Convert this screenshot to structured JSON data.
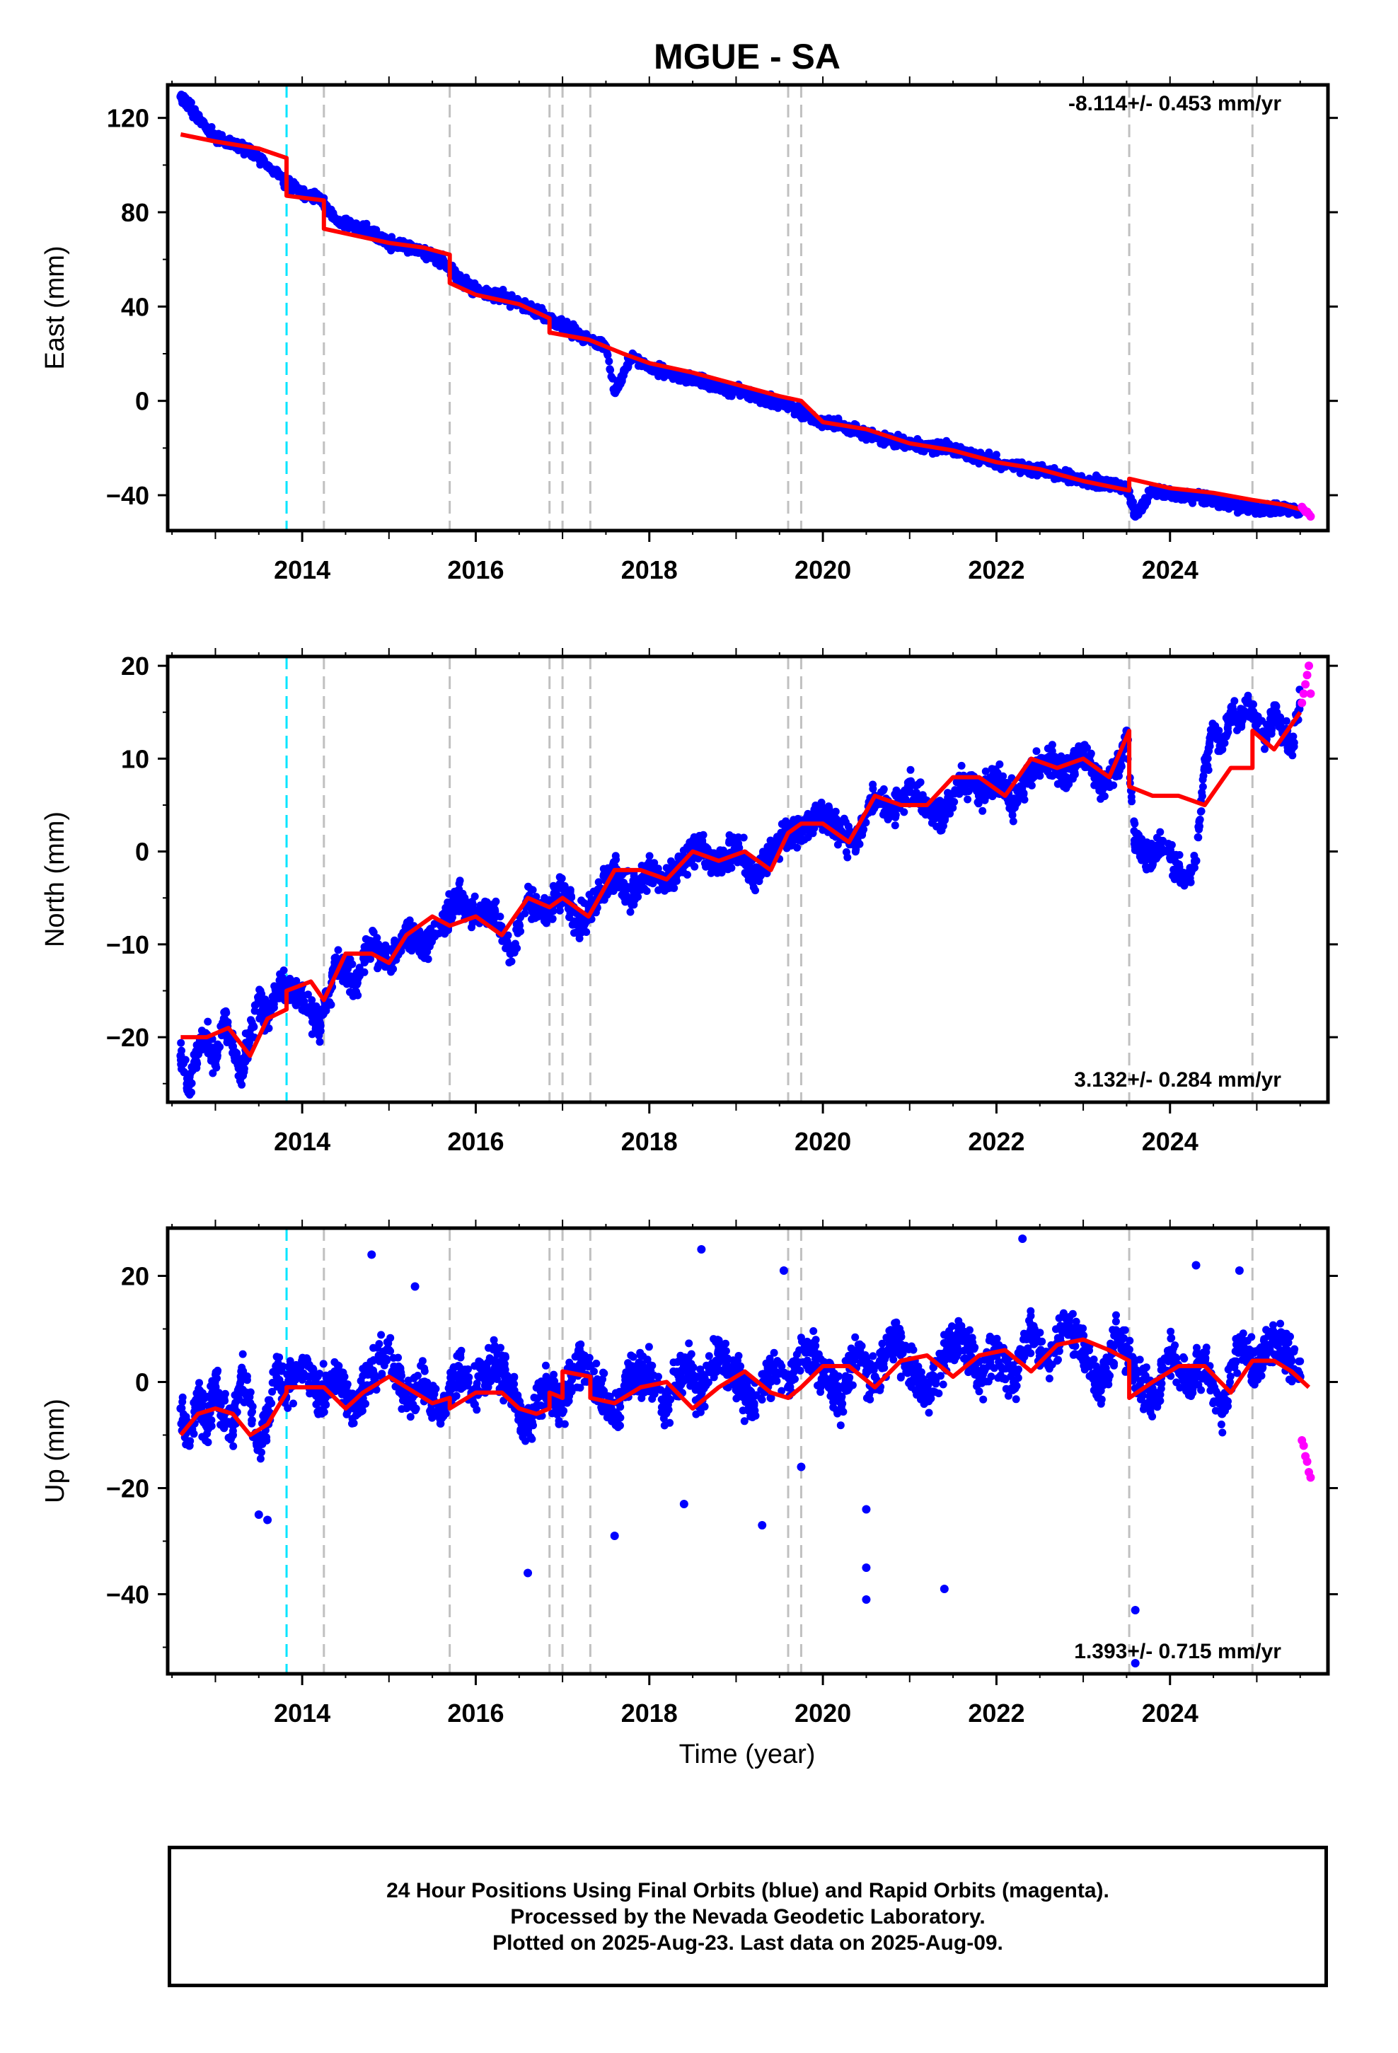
{
  "title": "MGUE - SA",
  "xlabel": "Time (year)",
  "x_ticks": [
    "2014",
    "2016",
    "2018",
    "2020",
    "2022",
    "2024"
  ],
  "colors": {
    "final_orbits": "#0000ff",
    "rapid_orbits": "#ff00ff",
    "model": "#ff0000",
    "event_line": "#c0c0c0",
    "equipment_line": "#00e5ff"
  },
  "caption": [
    "24 Hour Positions Using Final Orbits (blue) and Rapid Orbits (magenta).",
    "Processed by the Nevada Geodetic Laboratory.",
    "Plotted on 2025-Aug-23. Last data on 2025-Aug-09."
  ],
  "chart_data": [
    {
      "type": "scatter",
      "ylabel": "East (mm)",
      "rate": "-8.114+/- 0.453 mm/yr",
      "rate_position": "top-right",
      "xlim": [
        2012.45,
        2025.82
      ],
      "ylim": [
        -55,
        134
      ],
      "y_ticks": [
        120,
        80,
        40,
        0,
        -40
      ],
      "event_lines": [
        2013.82,
        2014.25,
        2015.7,
        2016.85,
        2017.0,
        2017.32,
        2019.6,
        2019.75,
        2023.53,
        2024.95
      ],
      "equipment_change": 2013.82,
      "series": [
        {
          "name": "model",
          "kind": "line",
          "x": [
            2012.6,
            2013.0,
            2013.5,
            2013.82,
            2013.82,
            2014.25,
            2014.25,
            2015.0,
            2015.4,
            2015.7,
            2015.7,
            2016.0,
            2016.5,
            2016.85,
            2016.85,
            2017.3,
            2017.7,
            2018.0,
            2018.5,
            2019.0,
            2019.5,
            2019.75,
            2020.0,
            2020.5,
            2021.0,
            2021.5,
            2022.0,
            2022.5,
            2023.0,
            2023.53,
            2023.53,
            2024.0,
            2024.5,
            2024.95,
            2025.3,
            2025.6
          ],
          "y": [
            113,
            110,
            107,
            103,
            87,
            85,
            73,
            67,
            65,
            62,
            50,
            45,
            41,
            35,
            29,
            26,
            20,
            16,
            12,
            7,
            2,
            0,
            -9,
            -12,
            -18,
            -21,
            -26,
            -29,
            -34,
            -38,
            -33,
            -37,
            -39,
            -42,
            -44,
            -47
          ]
        },
        {
          "name": "final",
          "kind": "points",
          "x": [
            2012.6,
            2012.65,
            2012.7,
            2012.8,
            2012.9,
            2013.0,
            2013.2,
            2013.4,
            2013.6,
            2013.8,
            2014.0,
            2014.2,
            2014.4,
            2014.7,
            2015.0,
            2015.3,
            2015.6,
            2015.8,
            2016.0,
            2016.3,
            2016.6,
            2016.9,
            2017.2,
            2017.5,
            2017.6,
            2017.8,
            2018.0,
            2018.3,
            2018.6,
            2019.0,
            2019.3,
            2019.6,
            2019.9,
            2020.2,
            2020.5,
            2020.8,
            2021.1,
            2021.4,
            2021.7,
            2022.0,
            2022.3,
            2022.6,
            2022.9,
            2023.2,
            2023.5,
            2023.6,
            2023.8,
            2024.1,
            2024.4,
            2024.7,
            2025.0,
            2025.3,
            2025.5
          ],
          "y": [
            129,
            128,
            125,
            120,
            115,
            112,
            109,
            106,
            100,
            93,
            88,
            86,
            76,
            73,
            67,
            64,
            60,
            52,
            47,
            44,
            40,
            34,
            28,
            23,
            4,
            19,
            14,
            11,
            8,
            4,
            1,
            -2,
            -8,
            -10,
            -14,
            -17,
            -19,
            -20,
            -23,
            -26,
            -28,
            -30,
            -33,
            -35,
            -36,
            -49,
            -38,
            -40,
            -41,
            -44,
            -46,
            -46,
            -47
          ]
        },
        {
          "name": "rapid",
          "kind": "points",
          "x": [
            2025.52,
            2025.54,
            2025.56,
            2025.58,
            2025.6,
            2025.62
          ],
          "y": [
            -45,
            -46,
            -47,
            -47,
            -48,
            -49
          ]
        }
      ]
    },
    {
      "type": "scatter",
      "ylabel": "North (mm)",
      "rate": "3.132+/- 0.284 mm/yr",
      "rate_position": "bottom-right",
      "xlim": [
        2012.45,
        2025.82
      ],
      "ylim": [
        -27,
        21
      ],
      "y_ticks": [
        20,
        10,
        0,
        -10,
        -20
      ],
      "event_lines": [
        2013.82,
        2014.25,
        2015.7,
        2016.85,
        2017.0,
        2017.32,
        2019.6,
        2019.75,
        2023.53,
        2024.95
      ],
      "equipment_change": 2013.82,
      "series": [
        {
          "name": "model",
          "kind": "line",
          "x": [
            2012.6,
            2012.9,
            2013.15,
            2013.4,
            2013.6,
            2013.82,
            2013.82,
            2014.1,
            2014.25,
            2014.5,
            2014.8,
            2015.0,
            2015.2,
            2015.5,
            2015.7,
            2016.0,
            2016.3,
            2016.6,
            2016.85,
            2017.0,
            2017.3,
            2017.6,
            2017.9,
            2018.2,
            2018.5,
            2018.8,
            2019.1,
            2019.4,
            2019.6,
            2019.75,
            2020.0,
            2020.3,
            2020.6,
            2020.9,
            2021.2,
            2021.5,
            2021.8,
            2022.1,
            2022.4,
            2022.7,
            2023.0,
            2023.3,
            2023.53,
            2023.53,
            2023.8,
            2024.1,
            2024.4,
            2024.7,
            2024.95,
            2024.95,
            2025.2,
            2025.5
          ],
          "y": [
            -20,
            -20,
            -19,
            -22,
            -18,
            -17,
            -15,
            -14,
            -16,
            -11,
            -11,
            -12,
            -9,
            -7,
            -8,
            -7,
            -9,
            -5,
            -6,
            -5,
            -7,
            -2,
            -2,
            -3,
            0,
            -1,
            0,
            -2,
            2,
            3,
            3,
            1,
            6,
            5,
            5,
            8,
            8,
            6,
            10,
            9,
            10,
            8,
            13,
            7,
            6,
            6,
            5,
            9,
            9,
            13,
            11,
            15
          ]
        },
        {
          "name": "final",
          "kind": "points",
          "x": [
            2012.6,
            2012.7,
            2012.8,
            2012.9,
            2013.0,
            2013.1,
            2013.2,
            2013.3,
            2013.4,
            2013.5,
            2013.6,
            2013.7,
            2013.8,
            2014.0,
            2014.2,
            2014.4,
            2014.6,
            2014.8,
            2015.0,
            2015.2,
            2015.4,
            2015.6,
            2015.8,
            2016.0,
            2016.2,
            2016.4,
            2016.6,
            2016.8,
            2017.0,
            2017.2,
            2017.4,
            2017.6,
            2017.8,
            2018.0,
            2018.2,
            2018.4,
            2018.6,
            2018.8,
            2019.0,
            2019.2,
            2019.4,
            2019.6,
            2019.8,
            2020.0,
            2020.2,
            2020.4,
            2020.6,
            2020.8,
            2021.0,
            2021.2,
            2021.4,
            2021.6,
            2021.8,
            2022.0,
            2022.2,
            2022.4,
            2022.6,
            2022.8,
            2023.0,
            2023.2,
            2023.4,
            2023.5,
            2023.6,
            2023.7,
            2023.8,
            2023.9,
            2024.0,
            2024.1,
            2024.2,
            2024.3,
            2024.4,
            2024.5,
            2024.6,
            2024.7,
            2024.8,
            2024.9,
            2025.0,
            2025.1,
            2025.2,
            2025.3,
            2025.4,
            2025.5
          ],
          "y": [
            -22,
            -25,
            -21,
            -20,
            -23,
            -18,
            -21,
            -24,
            -20,
            -16,
            -18,
            -15,
            -14,
            -16,
            -19,
            -12,
            -14,
            -10,
            -12,
            -9,
            -10,
            -8,
            -5,
            -7,
            -6,
            -11,
            -5,
            -7,
            -4,
            -8,
            -5,
            -2,
            -5,
            -2,
            -3,
            -1,
            1,
            -2,
            1,
            -3,
            0,
            2,
            3,
            4,
            2,
            1,
            6,
            4,
            7,
            5,
            4,
            8,
            6,
            8,
            5,
            9,
            10,
            8,
            11,
            7,
            9,
            13,
            1,
            0,
            -1,
            1,
            0,
            -2,
            -3,
            -1,
            9,
            13,
            11,
            15,
            14,
            16,
            14,
            12,
            15,
            13,
            11,
            16
          ]
        },
        {
          "name": "rapid",
          "kind": "points",
          "x": [
            2025.52,
            2025.54,
            2025.56,
            2025.58,
            2025.6,
            2025.62
          ],
          "y": [
            16,
            17,
            18,
            19,
            20,
            17
          ]
        }
      ]
    },
    {
      "type": "scatter",
      "ylabel": "Up (mm)",
      "rate": "1.393+/- 0.715 mm/yr",
      "rate_position": "bottom-right",
      "xlim": [
        2012.45,
        2025.82
      ],
      "ylim": [
        -55,
        29
      ],
      "y_ticks": [
        20,
        0,
        -20,
        -40
      ],
      "event_lines": [
        2013.82,
        2014.25,
        2015.7,
        2016.85,
        2017.0,
        2017.32,
        2019.6,
        2019.75,
        2023.53,
        2024.95
      ],
      "equipment_change": 2013.82,
      "series": [
        {
          "name": "model",
          "kind": "line",
          "x": [
            2012.6,
            2012.8,
            2013.0,
            2013.2,
            2013.4,
            2013.6,
            2013.82,
            2013.82,
            2014.0,
            2014.25,
            2014.5,
            2014.7,
            2015.0,
            2015.3,
            2015.5,
            2015.7,
            2015.7,
            2016.0,
            2016.3,
            2016.5,
            2016.7,
            2016.85,
            2016.85,
            2017.0,
            2017.0,
            2017.32,
            2017.32,
            2017.6,
            2017.9,
            2018.2,
            2018.5,
            2018.8,
            2019.1,
            2019.4,
            2019.6,
            2019.75,
            2020.0,
            2020.3,
            2020.6,
            2020.9,
            2021.2,
            2021.5,
            2021.8,
            2022.1,
            2022.4,
            2022.7,
            2023.0,
            2023.3,
            2023.53,
            2023.53,
            2023.8,
            2024.1,
            2024.4,
            2024.7,
            2024.95,
            2025.2,
            2025.4,
            2025.6
          ],
          "y": [
            -10,
            -6,
            -5,
            -6,
            -10,
            -8,
            -2,
            -1,
            -1,
            -1,
            -5,
            -2,
            1,
            -2,
            -4,
            -3,
            -5,
            -2,
            -2,
            -5,
            -6,
            -5,
            -2,
            -3,
            2,
            1,
            -3,
            -4,
            -1,
            0,
            -5,
            -1,
            2,
            -2,
            -3,
            -1,
            3,
            3,
            -1,
            4,
            5,
            1,
            5,
            6,
            2,
            7,
            8,
            6,
            4,
            -3,
            0,
            3,
            3,
            -2,
            4,
            4,
            2,
            -1
          ]
        },
        {
          "name": "final",
          "kind": "points",
          "x": [
            2012.6,
            2012.7,
            2012.8,
            2012.9,
            2013.0,
            2013.1,
            2013.2,
            2013.3,
            2013.4,
            2013.5,
            2013.6,
            2013.7,
            2013.8,
            2014.0,
            2014.2,
            2014.4,
            2014.6,
            2014.8,
            2015.0,
            2015.2,
            2015.4,
            2015.6,
            2015.8,
            2016.0,
            2016.2,
            2016.4,
            2016.6,
            2016.8,
            2017.0,
            2017.2,
            2017.4,
            2017.6,
            2017.8,
            2018.0,
            2018.2,
            2018.4,
            2018.6,
            2018.8,
            2019.0,
            2019.2,
            2019.4,
            2019.6,
            2019.8,
            2020.0,
            2020.2,
            2020.4,
            2020.6,
            2020.8,
            2021.0,
            2021.2,
            2021.4,
            2021.6,
            2021.8,
            2022.0,
            2022.2,
            2022.4,
            2022.6,
            2022.8,
            2023.0,
            2023.2,
            2023.4,
            2023.6,
            2023.8,
            2024.0,
            2024.2,
            2024.4,
            2024.6,
            2024.8,
            2025.0,
            2025.2,
            2025.4,
            2025.5,
            2013.5,
            2013.6,
            2014.8,
            2015.3,
            2016.6,
            2017.6,
            2018.4,
            2018.6,
            2019.3,
            2019.4,
            2019.55,
            2019.75,
            2020.5,
            2020.5,
            2020.5,
            2021.4,
            2022.3,
            2023.6,
            2023.6,
            2024.3,
            2024.8
          ],
          "y": [
            -5,
            -12,
            -3,
            -8,
            -1,
            -6,
            -10,
            2,
            -4,
            -12,
            -7,
            3,
            -2,
            4,
            -3,
            1,
            -5,
            2,
            6,
            -3,
            0,
            -6,
            3,
            -2,
            4,
            -1,
            -9,
            0,
            -4,
            5,
            -1,
            -6,
            2,
            1,
            -4,
            3,
            -2,
            6,
            1,
            -5,
            3,
            -1,
            7,
            2,
            -3,
            6,
            1,
            8,
            3,
            -2,
            5,
            9,
            1,
            6,
            0,
            10,
            3,
            12,
            5,
            -1,
            9,
            2,
            -4,
            6,
            0,
            4,
            -6,
            8,
            2,
            9,
            4,
            1,
            -25,
            -26,
            24,
            18,
            -36,
            -29,
            -23,
            25,
            -27,
            -3,
            21,
            -16,
            -24,
            -35,
            -41,
            -39,
            27,
            -43,
            -53,
            22,
            21
          ]
        },
        {
          "name": "rapid",
          "kind": "points",
          "x": [
            2025.52,
            2025.54,
            2025.56,
            2025.58,
            2025.6,
            2025.62
          ],
          "y": [
            -11,
            -12,
            -14,
            -15,
            -17,
            -18
          ]
        }
      ]
    }
  ]
}
